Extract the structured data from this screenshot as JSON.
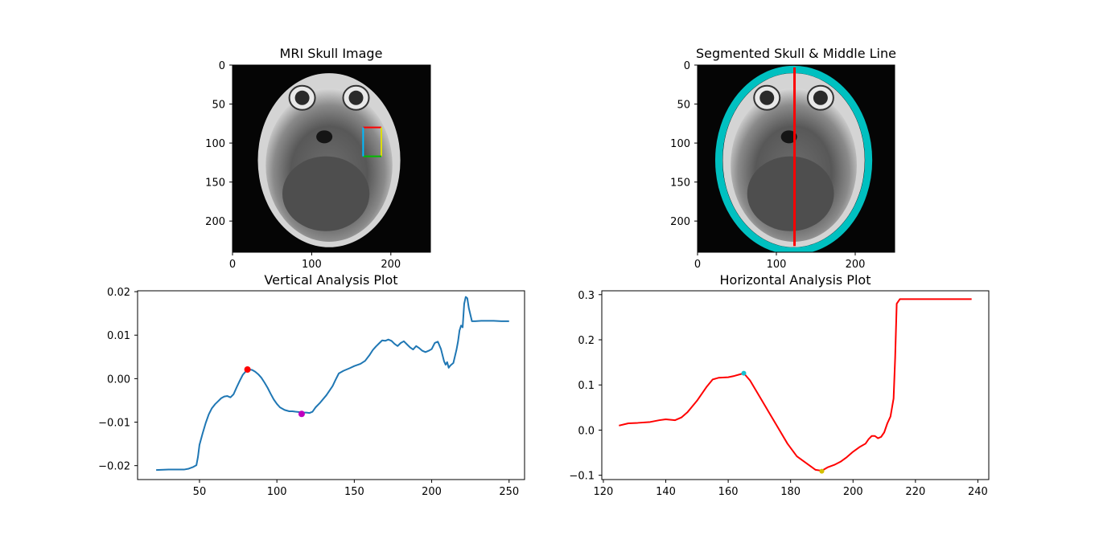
{
  "colors": {
    "background": "#ffffff",
    "axes_edge": "#000000",
    "vertical_line": "#1f77b4",
    "vertical_peak_marker": "#ff0000",
    "vertical_valley_marker": "#bf00bf",
    "horizontal_line": "#ff0000",
    "horizontal_peak_marker": "#17becf",
    "horizontal_valley_marker": "#d4c000",
    "skull_outline": "#00c0c0",
    "middle_line": "#ff0000",
    "roi_box_red": "#ff0000",
    "roi_box_green": "#00bb00",
    "roi_box_yellow": "#dddd00",
    "roi_box_cyan": "#00bbff"
  },
  "chart_data": [
    {
      "type": "image",
      "title": "MRI Skull Image",
      "xlim": [
        0,
        250
      ],
      "ylim": [
        240,
        0
      ],
      "xticks": [
        0,
        100,
        200
      ],
      "yticks": [
        0,
        50,
        100,
        150,
        200
      ],
      "roi_box": {
        "x0": 165,
        "x1": 188,
        "y0": 80,
        "y1": 117
      }
    },
    {
      "type": "image",
      "title": "Segmented Skull & Middle Line",
      "xlim": [
        0,
        250
      ],
      "ylim": [
        240,
        0
      ],
      "xticks": [
        0,
        100,
        200
      ],
      "yticks": [
        0,
        50,
        100,
        150,
        200
      ],
      "middle_line": {
        "x": 123,
        "y0": 3,
        "y1": 232
      }
    },
    {
      "type": "line",
      "title": "Vertical Analysis Plot",
      "xlim": [
        10,
        260
      ],
      "ylim": [
        -0.0232,
        0.0202
      ],
      "xticks": [
        50,
        100,
        150,
        200,
        250
      ],
      "yticks": [
        -0.02,
        -0.01,
        0.0,
        0.01,
        0.02
      ],
      "ytick_labels": [
        "−0.02",
        "−0.01",
        "0.00",
        "0.01",
        "0.02"
      ],
      "series": [
        {
          "x": [
            22,
            30,
            40,
            43,
            46,
            48,
            49,
            50,
            52,
            54,
            56,
            58,
            60,
            62,
            64,
            66,
            68,
            70,
            72,
            74,
            76,
            78,
            80,
            82,
            84,
            86,
            88,
            90,
            92,
            94,
            96,
            98,
            100,
            102,
            105,
            108,
            110,
            112,
            115,
            117,
            119,
            121,
            123,
            125,
            128,
            132,
            136,
            138,
            140,
            143,
            147,
            150,
            154,
            157,
            160,
            162,
            164,
            166,
            168,
            170,
            172,
            174,
            176,
            178,
            180,
            182,
            184,
            186,
            188,
            190,
            192,
            194,
            196,
            198,
            200,
            202,
            204,
            206,
            208,
            209,
            210,
            211,
            212,
            214,
            216,
            217,
            218,
            219,
            220,
            221,
            222,
            223,
            224,
            226,
            228,
            232,
            240,
            245,
            250
          ],
          "y": [
            -0.021,
            -0.0209,
            -0.0209,
            -0.0207,
            -0.0203,
            -0.0199,
            -0.018,
            -0.0152,
            -0.0126,
            -0.0102,
            -0.0082,
            -0.0068,
            -0.0059,
            -0.0052,
            -0.0045,
            -0.0041,
            -0.004,
            -0.0043,
            -0.0036,
            -0.002,
            -0.0005,
            0.0009,
            0.0017,
            0.0021,
            0.002,
            0.0016,
            0.001,
            0.0002,
            -0.0009,
            -0.0021,
            -0.0035,
            -0.0048,
            -0.0058,
            -0.0066,
            -0.0072,
            -0.0075,
            -0.0075,
            -0.0076,
            -0.0077,
            -0.0078,
            -0.0078,
            -0.0079,
            -0.0076,
            -0.0066,
            -0.0055,
            -0.0038,
            -0.0017,
            -0.0002,
            0.0012,
            0.0018,
            0.0024,
            0.0029,
            0.0034,
            0.0041,
            0.0055,
            0.0066,
            0.0074,
            0.0081,
            0.0088,
            0.0087,
            0.009,
            0.0087,
            0.008,
            0.0075,
            0.0082,
            0.0086,
            0.0079,
            0.0072,
            0.0067,
            0.0075,
            0.007,
            0.0064,
            0.0061,
            0.0064,
            0.0068,
            0.0082,
            0.0085,
            0.0068,
            0.004,
            0.0032,
            0.0038,
            0.0025,
            0.003,
            0.0036,
            0.0066,
            0.0085,
            0.0111,
            0.0122,
            0.0118,
            0.0172,
            0.0188,
            0.0185,
            0.0162,
            0.0132,
            0.0132,
            0.0133,
            0.0133,
            0.0132,
            0.0132
          ]
        }
      ],
      "markers": [
        {
          "x": 81,
          "y": 0.0021
        },
        {
          "x": 116,
          "y": -0.0081
        }
      ]
    },
    {
      "type": "line",
      "title": "Horizontal Analysis Plot",
      "xlim": [
        119.5,
        243.5
      ],
      "ylim": [
        -0.1095,
        0.3085
      ],
      "xticks": [
        120,
        140,
        160,
        180,
        200,
        220,
        240
      ],
      "yticks": [
        -0.1,
        0.0,
        0.1,
        0.2,
        0.3
      ],
      "ytick_labels": [
        "−0.1",
        "0.0",
        "0.1",
        "0.2",
        "0.3"
      ],
      "series": [
        {
          "x": [
            125,
            128,
            131,
            135,
            138,
            140,
            143,
            145,
            147,
            150,
            153,
            155,
            157,
            160,
            162,
            164,
            165,
            167,
            170,
            173,
            176,
            179,
            182,
            184,
            186,
            188,
            190,
            192,
            194,
            196,
            198,
            200,
            202,
            204,
            205,
            206,
            207,
            208,
            209,
            210,
            211,
            212,
            213,
            213.5,
            214,
            215,
            220,
            230,
            238
          ],
          "y": [
            0.01,
            0.015,
            0.016,
            0.018,
            0.022,
            0.024,
            0.022,
            0.028,
            0.04,
            0.065,
            0.095,
            0.112,
            0.116,
            0.117,
            0.12,
            0.124,
            0.126,
            0.11,
            0.075,
            0.04,
            0.005,
            -0.03,
            -0.058,
            -0.068,
            -0.078,
            -0.088,
            -0.09,
            -0.082,
            -0.077,
            -0.07,
            -0.06,
            -0.048,
            -0.038,
            -0.03,
            -0.02,
            -0.013,
            -0.013,
            -0.018,
            -0.015,
            -0.005,
            0.015,
            0.03,
            0.07,
            0.16,
            0.28,
            0.29,
            0.29,
            0.29,
            0.29
          ]
        }
      ],
      "markers": [
        {
          "x": 165,
          "y": 0.126
        },
        {
          "x": 190,
          "y": -0.091
        }
      ]
    }
  ]
}
